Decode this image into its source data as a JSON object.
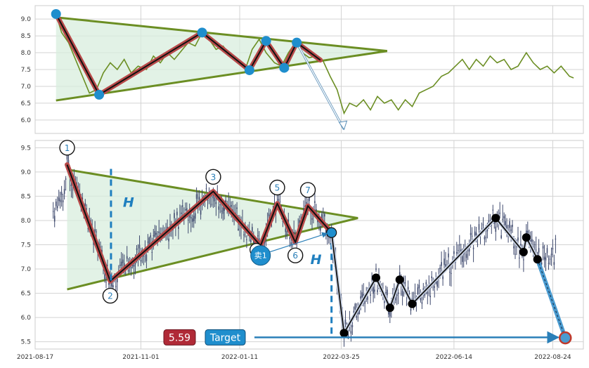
{
  "colors": {
    "triangle": "#6b8e23",
    "triangle_fill": "#d8eedd",
    "zigzag": "#b84a4a",
    "marker": "#1f8ecd",
    "price_line": "#6b8e23",
    "candle": "#3f4a6e",
    "target_label_bg": "#1f8ecd",
    "price_label_bg": "#b02a37",
    "dashed": "#1f7fbf",
    "grid": "#d3d3d3"
  },
  "chart_data": [
    {
      "type": "line",
      "panel": "top",
      "xlim": [
        "2021-08-17",
        "2022-09-15"
      ],
      "ylim": [
        5.6,
        9.4
      ],
      "yticks": [
        "6.0",
        "6.5",
        "7.0",
        "7.5",
        "8.0",
        "8.5",
        "9.0"
      ],
      "grid": true,
      "series": [
        {
          "values": [
            [
              "2021-09-01",
              9.15
            ],
            [
              "2021-09-05",
              8.6
            ],
            [
              "2021-09-10",
              8.3
            ],
            [
              "2021-09-15",
              7.8
            ],
            [
              "2021-09-20",
              7.3
            ],
            [
              "2021-09-25",
              6.8
            ],
            [
              "2021-09-30",
              6.9
            ],
            [
              "2021-10-05",
              7.4
            ],
            [
              "2021-10-10",
              7.7
            ],
            [
              "2021-10-15",
              7.5
            ],
            [
              "2021-10-20",
              7.8
            ],
            [
              "2021-10-25",
              7.4
            ],
            [
              "2021-10-30",
              7.6
            ],
            [
              "2021-11-05",
              7.5
            ],
            [
              "2021-11-10",
              7.9
            ],
            [
              "2021-11-15",
              7.7
            ],
            [
              "2021-11-20",
              8.0
            ],
            [
              "2021-11-25",
              7.8
            ],
            [
              "2021-12-01",
              8.1
            ],
            [
              "2021-12-05",
              8.3
            ],
            [
              "2021-12-10",
              8.2
            ],
            [
              "2021-12-15",
              8.6
            ],
            [
              "2021-12-20",
              8.4
            ],
            [
              "2021-12-25",
              8.1
            ],
            [
              "2021-12-30",
              8.2
            ],
            [
              "2022-01-05",
              7.9
            ],
            [
              "2022-01-10",
              7.8
            ],
            [
              "2022-01-15",
              7.5
            ],
            [
              "2022-01-20",
              8.1
            ],
            [
              "2022-01-25",
              8.4
            ],
            [
              "2022-01-30",
              8.0
            ],
            [
              "2022-02-05",
              7.7
            ],
            [
              "2022-02-10",
              7.6
            ],
            [
              "2022-02-15",
              8.0
            ],
            [
              "2022-02-20",
              8.3
            ],
            [
              "2022-02-25",
              8.0
            ],
            [
              "2022-03-02",
              7.85
            ],
            [
              "2022-03-07",
              7.9
            ],
            [
              "2022-03-12",
              7.75
            ],
            [
              "2022-03-17",
              7.3
            ],
            [
              "2022-03-22",
              6.9
            ],
            [
              "2022-03-27",
              6.2
            ],
            [
              "2022-03-31",
              6.5
            ],
            [
              "2022-04-05",
              6.4
            ],
            [
              "2022-04-10",
              6.6
            ],
            [
              "2022-04-15",
              6.3
            ],
            [
              "2022-04-20",
              6.7
            ],
            [
              "2022-04-25",
              6.5
            ],
            [
              "2022-04-30",
              6.6
            ],
            [
              "2022-05-05",
              6.3
            ],
            [
              "2022-05-10",
              6.6
            ],
            [
              "2022-05-15",
              6.4
            ],
            [
              "2022-05-20",
              6.8
            ],
            [
              "2022-05-25",
              6.9
            ],
            [
              "2022-05-30",
              7.0
            ],
            [
              "2022-06-05",
              7.3
            ],
            [
              "2022-06-10",
              7.4
            ],
            [
              "2022-06-15",
              7.6
            ],
            [
              "2022-06-20",
              7.8
            ],
            [
              "2022-06-25",
              7.5
            ],
            [
              "2022-06-30",
              7.8
            ],
            [
              "2022-07-05",
              7.6
            ],
            [
              "2022-07-10",
              7.9
            ],
            [
              "2022-07-15",
              7.7
            ],
            [
              "2022-07-20",
              7.8
            ],
            [
              "2022-07-25",
              7.5
            ],
            [
              "2022-07-30",
              7.6
            ],
            [
              "2022-08-05",
              8.0
            ],
            [
              "2022-08-10",
              7.7
            ],
            [
              "2022-08-15",
              7.5
            ],
            [
              "2022-08-20",
              7.6
            ],
            [
              "2022-08-25",
              7.4
            ],
            [
              "2022-08-30",
              7.6
            ],
            [
              "2022-09-05",
              7.3
            ],
            [
              "2022-09-08",
              7.25
            ]
          ]
        }
      ],
      "triangle": {
        "upper": [
          [
            "2021-09-01",
            9.05
          ],
          [
            "2022-04-27",
            8.05
          ]
        ],
        "lower": [
          [
            "2021-09-01",
            6.58
          ],
          [
            "2022-04-27",
            8.05
          ]
        ]
      },
      "zigzag": [
        [
          "2021-09-01",
          9.15
        ],
        [
          "2021-10-02",
          6.75
        ],
        [
          "2021-12-15",
          8.6
        ],
        [
          "2022-01-18",
          7.48
        ],
        [
          "2022-01-30",
          8.35
        ],
        [
          "2022-02-12",
          7.55
        ],
        [
          "2022-02-21",
          8.3
        ],
        [
          "2022-03-10",
          7.78
        ]
      ],
      "markers": [
        [
          "2021-09-01",
          9.15
        ],
        [
          "2021-10-02",
          6.75
        ],
        [
          "2021-12-15",
          8.6
        ],
        [
          "2022-01-18",
          7.48
        ],
        [
          "2022-01-30",
          8.35
        ],
        [
          "2022-02-12",
          7.55
        ],
        [
          "2022-02-21",
          8.3
        ]
      ],
      "arrow": {
        "from": [
          "2022-02-21",
          8.3
        ],
        "to": [
          "2022-03-27",
          5.72
        ]
      }
    },
    {
      "type": "candlestick",
      "panel": "bottom",
      "xlim": [
        "2021-08-17",
        "2022-09-15"
      ],
      "ylim": [
        5.35,
        9.65
      ],
      "xticks": [
        "2021-08-17",
        "2021-11-01",
        "2022-01-11",
        "2022-03-25",
        "2022-06-14",
        "2022-08-24"
      ],
      "yticks": [
        "5.5",
        "6.0",
        "6.5",
        "7.0",
        "7.5",
        "8.0",
        "8.5",
        "9.0",
        "9.5"
      ],
      "grid": true,
      "triangle": {
        "upper": [
          [
            "2021-09-09",
            9.05
          ],
          [
            "2022-04-06",
            8.05
          ]
        ],
        "lower": [
          [
            "2021-09-09",
            6.58
          ],
          [
            "2022-04-06",
            8.05
          ]
        ]
      },
      "zigzag": [
        [
          "2021-09-09",
          9.15
        ],
        [
          "2021-10-10",
          6.75
        ],
        [
          "2021-12-23",
          8.6
        ],
        [
          "2022-01-26",
          7.48
        ],
        [
          "2022-02-07",
          8.35
        ],
        [
          "2022-02-20",
          7.55
        ],
        [
          "2022-03-01",
          8.3
        ],
        [
          "2022-03-18",
          7.75
        ]
      ],
      "pivot_labels": [
        {
          "label": "1",
          "x": "2021-09-09",
          "y": 9.5
        },
        {
          "label": "2",
          "x": "2021-10-10",
          "y": 6.45
        },
        {
          "label": "3",
          "x": "2021-12-23",
          "y": 8.9
        },
        {
          "label": "5",
          "x": "2022-02-07",
          "y": 8.68
        },
        {
          "label": "6",
          "x": "2022-02-20",
          "y": 7.28
        },
        {
          "label": "7",
          "x": "2022-03-01",
          "y": 8.63
        }
      ],
      "height_label": "H",
      "sell_signal": {
        "label": "卖1",
        "x": "2022-01-26",
        "y": 7.28
      },
      "breakout": [
        "2022-03-18",
        7.75
      ],
      "post_path": [
        [
          "2022-03-18",
          7.75
        ],
        [
          "2022-03-27",
          5.68
        ],
        [
          "2022-04-19",
          6.82
        ],
        [
          "2022-04-29",
          6.2
        ],
        [
          "2022-05-06",
          6.78
        ],
        [
          "2022-05-15",
          6.28
        ],
        [
          "2022-07-14",
          8.05
        ],
        [
          "2022-08-03",
          7.35
        ],
        [
          "2022-08-05",
          7.65
        ],
        [
          "2022-08-13",
          7.2
        ],
        [
          "2022-09-02",
          5.58
        ]
      ],
      "target_price": 5.59,
      "target_label": "Target",
      "price_label": "5.59"
    }
  ]
}
